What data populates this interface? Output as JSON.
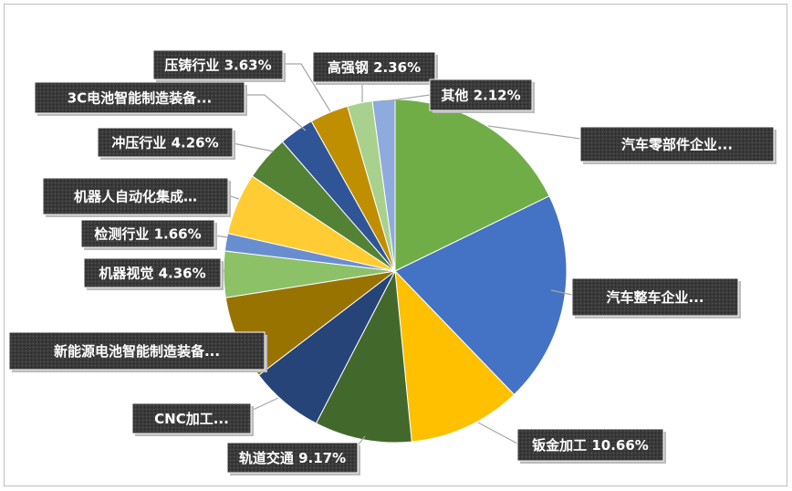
{
  "chart_data": {
    "type": "pie",
    "labels": [
      "汽车零部件企业...",
      "汽车整车企业...",
      "钣金加工 10.66%",
      "轨道交通 9.17%",
      "CNC加工...",
      "新能源电池智能制造装备...",
      "机器视觉 4.36%",
      "检测行业 1.66%",
      "机器人自动化集成…",
      "冲压行业 4.26%",
      "3C电池智能制造装备...",
      "压铸行业 3.63%",
      "高强钢 2.36%",
      "其他 2.12%"
    ],
    "values": [
      17.8,
      20.0,
      10.66,
      9.17,
      7.0,
      7.9,
      4.36,
      1.66,
      5.8,
      4.26,
      3.3,
      3.63,
      2.36,
      2.12
    ],
    "colors": [
      "#70ad47",
      "#4472c4",
      "#ffc000",
      "#43682b",
      "#264478",
      "#997300",
      "#8cc168",
      "#698ed0",
      "#ffcd33",
      "#548235",
      "#2f5597",
      "#bf8f00",
      "#a9d18e",
      "#8faadc"
    ]
  }
}
